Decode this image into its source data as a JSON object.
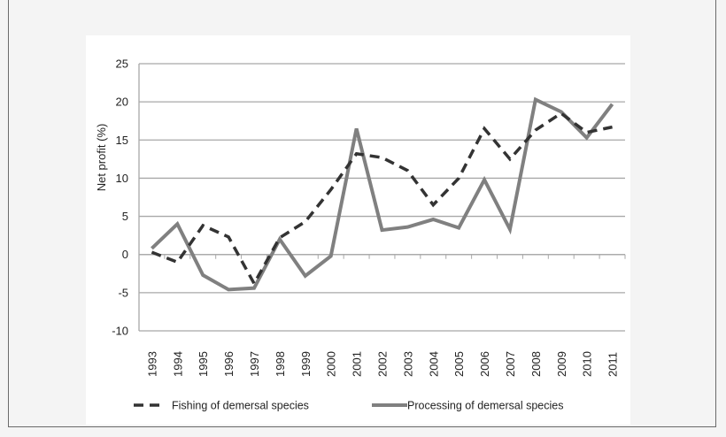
{
  "chart_data": {
    "type": "line",
    "title": "",
    "xlabel": "",
    "ylabel": "Net profit (%)",
    "ylim": [
      -10,
      25
    ],
    "yticks": [
      -10,
      -5,
      0,
      5,
      10,
      15,
      20,
      25
    ],
    "grid": true,
    "legend_position": "bottom",
    "categories": [
      "1993",
      "1994",
      "1995",
      "1996",
      "1997",
      "1998",
      "1999",
      "2000",
      "2001",
      "2002",
      "2003",
      "2004",
      "2005",
      "2006",
      "2007",
      "2008",
      "2009",
      "2010",
      "2011"
    ],
    "series": [
      {
        "name": "Fishing of demersal species",
        "style": "dashed",
        "color": "#333333",
        "values": [
          0.3,
          -1.0,
          3.8,
          2.3,
          -3.8,
          2.2,
          4.3,
          8.5,
          13.2,
          12.7,
          11.0,
          6.5,
          10.0,
          16.5,
          12.5,
          16.3,
          18.5,
          16.0,
          16.7
        ]
      },
      {
        "name": "Processing of demersal species",
        "style": "solid",
        "color": "#808080",
        "values": [
          0.8,
          4.0,
          -2.7,
          -4.6,
          -4.4,
          2.0,
          -2.8,
          -0.2,
          16.5,
          3.2,
          3.6,
          4.6,
          3.5,
          9.8,
          3.3,
          20.3,
          18.7,
          15.3,
          19.7
        ]
      }
    ]
  }
}
